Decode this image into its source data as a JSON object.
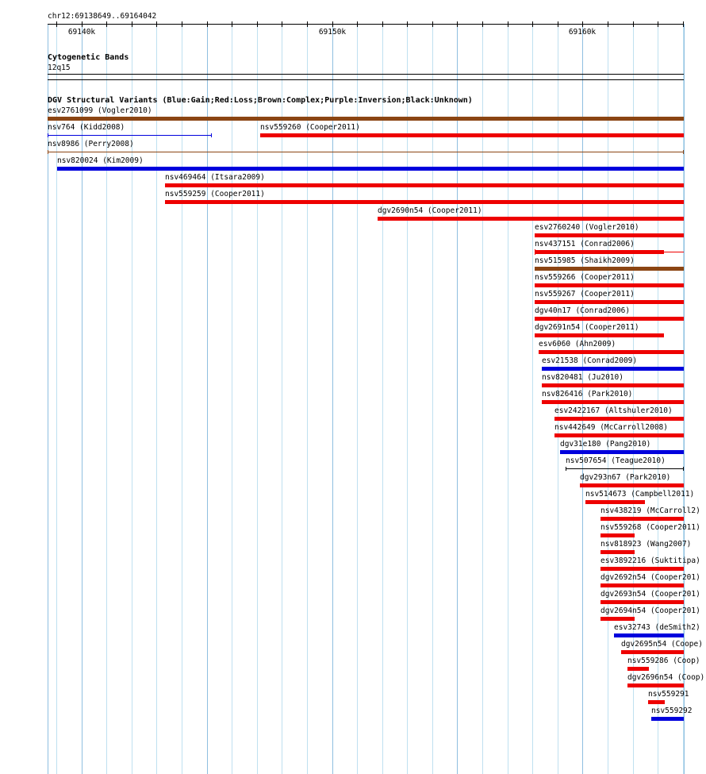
{
  "ruler": {
    "position": "chr12:69138649..69164042",
    "ticks": [
      {
        "label": "69140k",
        "pos": 69140000
      },
      {
        "label": "69150k",
        "pos": 69150000
      },
      {
        "label": "69160k",
        "pos": 69160000
      }
    ]
  },
  "cytobands": {
    "title": "Cytogenetic Bands",
    "band": "12q15"
  },
  "dgv": {
    "title": "DGV Structural Variants (Blue:Gain;Red:Loss;Brown:Complex;Purple:Inversion;Black:Unknown)",
    "colors": {
      "gain": "#0000dd",
      "loss": "#ee0000",
      "complex": "#8b4513",
      "unknown": "#000000"
    },
    "features": [
      {
        "name": "esv2761099",
        "source": "Vogler2010",
        "start": 69138649,
        "end": 69164042,
        "type": "complex",
        "style": "bar"
      },
      {
        "name": "nsv764",
        "source": "Kidd2008",
        "start": 69138649,
        "end": 69145200,
        "type": "gain",
        "style": "thin"
      },
      {
        "name": "nsv559260",
        "source": "Cooper2011",
        "start": 69147150,
        "end": 69164042,
        "type": "loss",
        "style": "bar"
      },
      {
        "name": "nsv8986",
        "source": "Perry2008",
        "start": 69138649,
        "end": 69164042,
        "type": "complex",
        "style": "thin"
      },
      {
        "name": "nsv820024",
        "source": "Kim2009",
        "start": 69139020,
        "end": 69164042,
        "type": "gain",
        "style": "bar"
      },
      {
        "name": "nsv469464",
        "source": "Itsara2009",
        "start": 69143330,
        "end": 69164042,
        "type": "loss",
        "style": "bar"
      },
      {
        "name": "nsv559259",
        "source": "Cooper2011",
        "start": 69143330,
        "end": 69164042,
        "type": "loss",
        "style": "bar"
      },
      {
        "name": "dgv2690n54",
        "source": "Cooper2011",
        "start": 69151820,
        "end": 69164042,
        "type": "loss",
        "style": "bar"
      },
      {
        "name": "esv2760240",
        "source": "Vogler2010",
        "start": 69158090,
        "end": 69164042,
        "type": "loss",
        "style": "bar"
      },
      {
        "name": "nsv437151",
        "source": "Conrad2006",
        "start": 69158090,
        "end": 69164042,
        "type": "loss",
        "style": "mixed",
        "barEnd": 69163250
      },
      {
        "name": "nsv515985",
        "source": "Shaikh2009",
        "start": 69158090,
        "end": 69164042,
        "type": "complex",
        "style": "bar"
      },
      {
        "name": "nsv559266",
        "source": "Cooper2011",
        "start": 69158090,
        "end": 69164042,
        "type": "loss",
        "style": "bar"
      },
      {
        "name": "nsv559267",
        "source": "Cooper2011",
        "start": 69158090,
        "end": 69164042,
        "type": "loss",
        "style": "bar"
      },
      {
        "name": "dgv40n17",
        "source": "Conrad2006",
        "start": 69158090,
        "end": 69164042,
        "type": "loss",
        "style": "bar"
      },
      {
        "name": "dgv2691n54",
        "source": "Cooper2011",
        "start": 69158090,
        "end": 69163250,
        "type": "loss",
        "style": "bar"
      },
      {
        "name": "esv6060",
        "source": "Ahn2009",
        "start": 69158250,
        "end": 69164042,
        "type": "loss",
        "style": "bar"
      },
      {
        "name": "esv21538",
        "source": "Conrad2009",
        "start": 69158380,
        "end": 69164042,
        "type": "gain",
        "style": "bar"
      },
      {
        "name": "nsv820481",
        "source": "Ju2010",
        "start": 69158380,
        "end": 69164042,
        "type": "loss",
        "style": "bar"
      },
      {
        "name": "nsv826416",
        "source": "Park2010",
        "start": 69158380,
        "end": 69164042,
        "type": "loss",
        "style": "bar"
      },
      {
        "name": "esv2422167",
        "source": "Altshuler2010",
        "start": 69158890,
        "end": 69164042,
        "type": "loss",
        "style": "bar"
      },
      {
        "name": "nsv442649",
        "source": "McCarroll2008",
        "start": 69158890,
        "end": 69164042,
        "type": "loss",
        "style": "bar"
      },
      {
        "name": "dgv31e180",
        "source": "Pang2010",
        "start": 69159110,
        "end": 69164042,
        "type": "gain",
        "style": "bar"
      },
      {
        "name": "nsv507654",
        "source": "Teague2010",
        "start": 69159340,
        "end": 69164042,
        "type": "unknown",
        "style": "thin"
      },
      {
        "name": "dgv293n67",
        "source": "Park2010",
        "start": 69159910,
        "end": 69164042,
        "type": "loss",
        "style": "bar"
      },
      {
        "name": "nsv514673",
        "source": "Campbell2011",
        "start": 69160130,
        "end": 69162490,
        "type": "loss",
        "style": "bar"
      },
      {
        "name": "nsv438219",
        "source": "McCarroll2",
        "start": 69160730,
        "end": 69164042,
        "type": "loss",
        "style": "bar"
      },
      {
        "name": "nsv559268",
        "source": "Cooper2011",
        "start": 69160730,
        "end": 69162080,
        "type": "loss",
        "style": "bar"
      },
      {
        "name": "nsv818923",
        "source": "Wang2007",
        "start": 69160730,
        "end": 69162080,
        "type": "loss",
        "style": "bar"
      },
      {
        "name": "esv3892216",
        "source": "Suktitipa",
        "start": 69160730,
        "end": 69164042,
        "type": "loss",
        "style": "bar"
      },
      {
        "name": "dgv2692n54",
        "source": "Cooper201",
        "start": 69160730,
        "end": 69164042,
        "type": "loss",
        "style": "bar"
      },
      {
        "name": "dgv2693n54",
        "source": "Cooper201",
        "start": 69160730,
        "end": 69164042,
        "type": "loss",
        "style": "bar"
      },
      {
        "name": "dgv2694n54",
        "source": "Cooper201",
        "start": 69160730,
        "end": 69162080,
        "type": "loss",
        "style": "bar"
      },
      {
        "name": "esv32743",
        "source": "deSmith2",
        "start": 69161240,
        "end": 69164042,
        "type": "gain",
        "style": "bar"
      },
      {
        "name": "dgv2695n54",
        "source": "Coope",
        "start": 69161530,
        "end": 69164042,
        "type": "loss",
        "style": "bar"
      },
      {
        "name": "nsv559286",
        "source": "Coop",
        "start": 69161800,
        "end": 69162650,
        "type": "loss",
        "style": "bar"
      },
      {
        "name": "dgv2696n54",
        "source": "Coop",
        "start": 69161800,
        "end": 69164042,
        "type": "loss",
        "style": "bar"
      },
      {
        "name": "nsv559291",
        "source": "",
        "start": 69162630,
        "end": 69163270,
        "type": "loss",
        "style": "bar"
      },
      {
        "name": "nsv559292",
        "source": "",
        "start": 69162750,
        "end": 69164042,
        "type": "gain",
        "style": "bar"
      }
    ]
  }
}
